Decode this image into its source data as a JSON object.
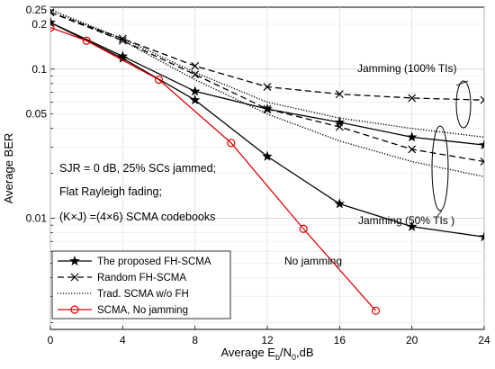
{
  "chart_data": {
    "type": "line",
    "xlabel": "Average E",
    "xlabel_sub": "b",
    "xlabel_mid": "/N",
    "xlabel_sub2": "0",
    "xlabel_tail": ",dB",
    "ylabel": "Average BER",
    "xscale": "linear",
    "yscale": "log",
    "xlim": [
      0,
      24
    ],
    "ylim": [
      0.0018,
      0.26
    ],
    "grid": true,
    "legend_position": "bottom-left",
    "x_ticks": [
      0,
      4,
      8,
      12,
      16,
      20,
      24
    ],
    "x_tick_labels": [
      "0",
      "4",
      "8",
      "12",
      "16",
      "20",
      "24"
    ],
    "y_ticks": [
      0.01,
      0.05,
      0.1,
      0.2,
      0.25
    ],
    "y_tick_labels": [
      "0.01",
      "0.05",
      "0.1",
      "0.2",
      "0.25"
    ],
    "series": [
      {
        "name": "The proposed FH-SCMA",
        "style": "solid",
        "marker": "star",
        "color": "#000000",
        "x": [
          0,
          4,
          8,
          12,
          16,
          20,
          24
        ],
        "y": [
          0.205,
          0.122,
          0.071,
          0.054,
          0.044,
          0.035,
          0.031
        ]
      },
      {
        "name": "The proposed FH-SCMA",
        "style": "solid",
        "marker": "star",
        "color": "#000000",
        "x": [
          0,
          4,
          8,
          12,
          16,
          20,
          24
        ],
        "y": [
          0.205,
          0.118,
          0.062,
          0.026,
          0.0125,
          0.0088,
          0.0075
        ]
      },
      {
        "name": "Random FH-SCMA",
        "style": "dashed",
        "marker": "x",
        "color": "#000000",
        "x": [
          0,
          4,
          8,
          12,
          16,
          20,
          24
        ],
        "y": [
          0.24,
          0.16,
          0.105,
          0.076,
          0.068,
          0.064,
          0.062
        ]
      },
      {
        "name": "Random FH-SCMA",
        "style": "dashed",
        "marker": "x",
        "color": "#000000",
        "x": [
          0,
          4,
          8,
          12,
          16,
          20,
          24
        ],
        "y": [
          0.24,
          0.155,
          0.092,
          0.054,
          0.041,
          0.029,
          0.024
        ]
      },
      {
        "name": "Trad. SCMA w/o FH",
        "style": "dotted",
        "marker": "none",
        "color": "#000000",
        "x": [
          0,
          4,
          8,
          12,
          16,
          20,
          24
        ],
        "y": [
          0.25,
          0.16,
          0.095,
          0.06,
          0.047,
          0.04,
          0.035
        ]
      },
      {
        "name": "Trad. SCMA w/o FH",
        "style": "dotted",
        "marker": "none",
        "color": "#000000",
        "x": [
          0,
          4,
          8,
          12,
          16,
          20,
          24
        ],
        "y": [
          0.25,
          0.155,
          0.085,
          0.05,
          0.033,
          0.024,
          0.019
        ]
      },
      {
        "name": "SCMA, No jamming",
        "style": "solid",
        "marker": "circle",
        "color": "#e00000",
        "x": [
          0,
          2,
          6,
          10,
          14,
          18
        ],
        "y": [
          0.19,
          0.155,
          0.085,
          0.032,
          0.0085,
          0.0024
        ]
      }
    ],
    "legend": [
      {
        "label": "The proposed FH-SCMA",
        "style": "solid",
        "marker": "star",
        "color": "#000000"
      },
      {
        "label": "Random FH-SCMA",
        "style": "dashed",
        "marker": "x",
        "color": "#000000"
      },
      {
        "label": "Trad. SCMA w/o FH",
        "style": "dotted",
        "marker": "none",
        "color": "#000000"
      },
      {
        "label": "SCMA, No jamming",
        "style": "solid",
        "marker": "circle",
        "color": "#e00000"
      }
    ],
    "annotations": {
      "jam100": "Jamming (100% TIs)",
      "jam50": "Jamming (50% TIs )",
      "nojam": "No jamming",
      "cond1": "SJR = 0 dB,  25% SCs jammed;",
      "cond2": "Flat Rayleigh fading;",
      "cond3": "(K×J) =(4×6) SCMA codebooks"
    }
  }
}
